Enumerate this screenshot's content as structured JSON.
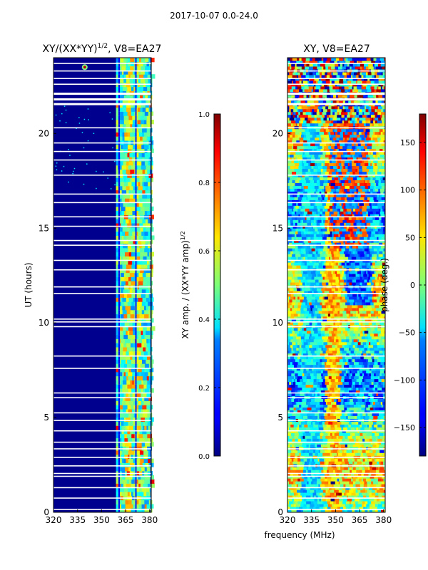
{
  "figure": {
    "suptitle": "2017-10-07 0.0-24.0",
    "xlabel": "frequency (MHz)"
  },
  "chart_data": [
    {
      "type": "heatmap",
      "title_main": "XY/(XX*YY)",
      "title_exp": "1/2",
      "title_rest": ", V8=EA27",
      "xlabel": "",
      "ylabel": "UT (hours)",
      "xlim": [
        320,
        381
      ],
      "ylim": [
        0,
        24
      ],
      "xticks": [
        "320",
        "335",
        "350",
        "365",
        "380"
      ],
      "yticks": [
        "0",
        "5",
        "10",
        "15",
        "20"
      ],
      "colorbar": {
        "label_main": "XY amp. / (XX*YY amp)",
        "label_exp": "1/2",
        "range": [
          0.0,
          1.0
        ],
        "ticks": [
          "0.0",
          "0.2",
          "0.4",
          "0.6",
          "0.8",
          "1.0"
        ]
      },
      "colormap": "jet"
    },
    {
      "type": "heatmap",
      "title": "XY, V8=EA27",
      "xlabel": "frequency (MHz)",
      "ylabel": "",
      "xlim": [
        320,
        381
      ],
      "ylim": [
        0,
        24
      ],
      "xticks": [
        "320",
        "335",
        "350",
        "365",
        "380"
      ],
      "yticks": [
        "0",
        "5",
        "10",
        "15",
        "20"
      ],
      "colorbar": {
        "label": "phase (deg.)",
        "range": [
          -180,
          180
        ],
        "ticks": [
          "−150",
          "−100",
          "−50",
          "0",
          "50",
          "100",
          "150"
        ]
      },
      "colormap": "jet"
    }
  ]
}
